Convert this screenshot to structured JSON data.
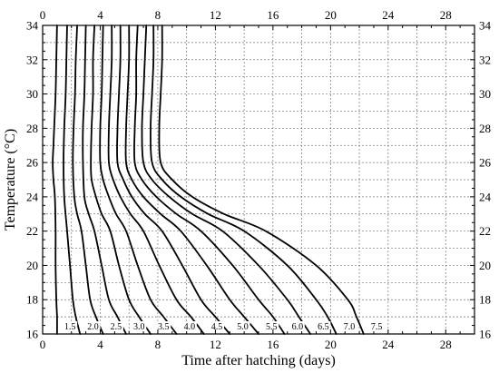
{
  "chart_data": {
    "type": "line",
    "title": "",
    "xlabel": "Time after hatching (days)",
    "ylabel": "Temperature (°C)",
    "xlim": [
      0,
      30
    ],
    "ylim": [
      16,
      34
    ],
    "xticks": [
      "0",
      "4",
      "8",
      "12",
      "16",
      "20",
      "24",
      "28"
    ],
    "yticks": [
      "16",
      "18",
      "20",
      "22",
      "24",
      "26",
      "28",
      "30",
      "32",
      "34"
    ],
    "x_tick_values": [
      0,
      4,
      8,
      12,
      16,
      20,
      24,
      28
    ],
    "y_tick_values": [
      16,
      18,
      20,
      22,
      24,
      26,
      28,
      30,
      32,
      34
    ],
    "grid": true,
    "legend": "none",
    "series": [
      {
        "label": "1.5",
        "points": [
          [
            1.0,
            16
          ],
          [
            1.0,
            17
          ],
          [
            0.95,
            18
          ],
          [
            0.9,
            20
          ],
          [
            0.9,
            22
          ],
          [
            0.85,
            24
          ],
          [
            0.75,
            25
          ],
          [
            0.7,
            26
          ],
          [
            0.75,
            27
          ],
          [
            0.8,
            28
          ],
          [
            0.9,
            30
          ],
          [
            0.95,
            32
          ],
          [
            1.0,
            34
          ]
        ]
      },
      {
        "label": "2.0",
        "points": [
          [
            2.6,
            16
          ],
          [
            2.3,
            17
          ],
          [
            2.1,
            18
          ],
          [
            1.9,
            20
          ],
          [
            1.7,
            22
          ],
          [
            1.5,
            24
          ],
          [
            1.45,
            26
          ],
          [
            1.5,
            28
          ],
          [
            1.6,
            30
          ],
          [
            1.65,
            32
          ],
          [
            1.7,
            34
          ]
        ]
      },
      {
        "label": "2.5",
        "points": [
          [
            4.2,
            16
          ],
          [
            3.7,
            17
          ],
          [
            3.3,
            18
          ],
          [
            3.0,
            20
          ],
          [
            2.7,
            22
          ],
          [
            2.4,
            23
          ],
          [
            2.2,
            24
          ],
          [
            2.1,
            26
          ],
          [
            2.15,
            28
          ],
          [
            2.25,
            30
          ],
          [
            2.3,
            32
          ],
          [
            2.4,
            34
          ]
        ]
      },
      {
        "label": "3.0",
        "points": [
          [
            5.8,
            16
          ],
          [
            5.2,
            17
          ],
          [
            4.6,
            18
          ],
          [
            4.1,
            20
          ],
          [
            3.6,
            22
          ],
          [
            3.2,
            23
          ],
          [
            2.9,
            24
          ],
          [
            2.8,
            26
          ],
          [
            2.8,
            28
          ],
          [
            2.9,
            30
          ],
          [
            2.95,
            32
          ],
          [
            3.0,
            34
          ]
        ]
      },
      {
        "label": "3.5",
        "points": [
          [
            7.5,
            16
          ],
          [
            6.7,
            17
          ],
          [
            6.0,
            18
          ],
          [
            5.3,
            20
          ],
          [
            4.7,
            22
          ],
          [
            4.1,
            23
          ],
          [
            3.7,
            24
          ],
          [
            3.4,
            25
          ],
          [
            3.35,
            26
          ],
          [
            3.4,
            28
          ],
          [
            3.5,
            30
          ],
          [
            3.5,
            32
          ],
          [
            3.6,
            34
          ]
        ]
      },
      {
        "label": "4.0",
        "points": [
          [
            9.3,
            16
          ],
          [
            8.4,
            17
          ],
          [
            7.5,
            18
          ],
          [
            6.6,
            20
          ],
          [
            5.8,
            22
          ],
          [
            5.1,
            23
          ],
          [
            4.6,
            24
          ],
          [
            4.2,
            25
          ],
          [
            4.0,
            26
          ],
          [
            4.0,
            28
          ],
          [
            4.1,
            30
          ],
          [
            4.15,
            32
          ],
          [
            4.2,
            34
          ]
        ]
      },
      {
        "label": "4.5",
        "points": [
          [
            11.2,
            16
          ],
          [
            10.3,
            17
          ],
          [
            9.3,
            18
          ],
          [
            8.1,
            20
          ],
          [
            7.0,
            22
          ],
          [
            6.1,
            23
          ],
          [
            5.4,
            24
          ],
          [
            4.9,
            25
          ],
          [
            4.6,
            26
          ],
          [
            4.6,
            28
          ],
          [
            4.7,
            30
          ],
          [
            4.8,
            32
          ],
          [
            4.8,
            34
          ]
        ]
      },
      {
        "label": "5.0",
        "points": [
          [
            13.0,
            16
          ],
          [
            12.0,
            17
          ],
          [
            11.0,
            18
          ],
          [
            9.7,
            20
          ],
          [
            8.3,
            22
          ],
          [
            7.1,
            23
          ],
          [
            6.2,
            24
          ],
          [
            5.6,
            25
          ],
          [
            5.2,
            26
          ],
          [
            5.2,
            28
          ],
          [
            5.3,
            30
          ],
          [
            5.4,
            32
          ],
          [
            5.4,
            34
          ]
        ]
      },
      {
        "label": "5.5",
        "points": [
          [
            15.0,
            16
          ],
          [
            14.0,
            17
          ],
          [
            13.0,
            18
          ],
          [
            11.4,
            20
          ],
          [
            9.6,
            22
          ],
          [
            8.2,
            23
          ],
          [
            7.0,
            24
          ],
          [
            6.2,
            25
          ],
          [
            5.8,
            26
          ],
          [
            5.8,
            28
          ],
          [
            5.9,
            30
          ],
          [
            6.0,
            32
          ],
          [
            6.0,
            34
          ]
        ]
      },
      {
        "label": "6.0",
        "points": [
          [
            16.8,
            16
          ],
          [
            16.0,
            17
          ],
          [
            15.0,
            18
          ],
          [
            13.2,
            20
          ],
          [
            11.0,
            22
          ],
          [
            9.3,
            23
          ],
          [
            7.9,
            24
          ],
          [
            6.9,
            25
          ],
          [
            6.4,
            26
          ],
          [
            6.4,
            28
          ],
          [
            6.5,
            30
          ],
          [
            6.5,
            32
          ],
          [
            6.6,
            34
          ]
        ]
      },
      {
        "label": "6.5",
        "points": [
          [
            18.6,
            16
          ],
          [
            17.8,
            17
          ],
          [
            17.0,
            18
          ],
          [
            15.0,
            20
          ],
          [
            12.5,
            22
          ],
          [
            10.4,
            23
          ],
          [
            8.8,
            24
          ],
          [
            7.6,
            25
          ],
          [
            7.0,
            26
          ],
          [
            6.9,
            28
          ],
          [
            7.0,
            30
          ],
          [
            7.1,
            32
          ],
          [
            7.2,
            34
          ]
        ]
      },
      {
        "label": "7.0",
        "points": [
          [
            20.4,
            16
          ],
          [
            19.8,
            17
          ],
          [
            19.0,
            18
          ],
          [
            17.0,
            20
          ],
          [
            14.0,
            22
          ],
          [
            11.5,
            23
          ],
          [
            9.6,
            24
          ],
          [
            8.3,
            25
          ],
          [
            7.6,
            26
          ],
          [
            7.5,
            28
          ],
          [
            7.6,
            30
          ],
          [
            7.7,
            32
          ],
          [
            7.7,
            34
          ]
        ]
      },
      {
        "label": "7.5",
        "points": [
          [
            22.3,
            16
          ],
          [
            21.8,
            17
          ],
          [
            21.2,
            18
          ],
          [
            19.0,
            20
          ],
          [
            15.5,
            22
          ],
          [
            12.6,
            23
          ],
          [
            10.4,
            24
          ],
          [
            9.0,
            25
          ],
          [
            8.2,
            26
          ],
          [
            8.1,
            28
          ],
          [
            8.2,
            30
          ],
          [
            8.3,
            32
          ],
          [
            8.3,
            34
          ]
        ]
      }
    ],
    "contour_label_positions": [
      {
        "label": "1.5",
        "x": 1.9
      },
      {
        "label": "2.0",
        "x": 3.5
      },
      {
        "label": "2.5",
        "x": 5.1
      },
      {
        "label": "3.0",
        "x": 6.7
      },
      {
        "label": "3.5",
        "x": 8.4
      },
      {
        "label": "4.0",
        "x": 10.2
      },
      {
        "label": "4.5",
        "x": 12.1
      },
      {
        "label": "5.0",
        "x": 13.9
      },
      {
        "label": "5.5",
        "x": 15.9
      },
      {
        "label": "6.0",
        "x": 17.7
      },
      {
        "label": "6.5",
        "x": 19.5
      },
      {
        "label": "7.0",
        "x": 21.3
      },
      {
        "label": "7.5",
        "x": 23.2
      }
    ]
  }
}
